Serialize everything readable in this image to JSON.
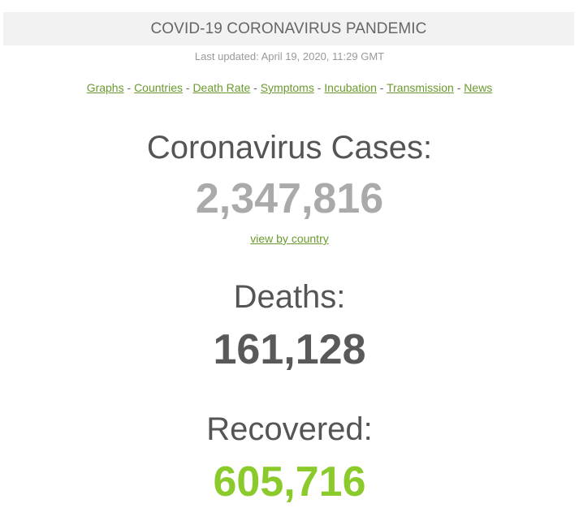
{
  "header": {
    "title": "COVID-19 CORONAVIRUS PANDEMIC",
    "last_updated": "Last updated: April 19, 2020, 11:29 GMT"
  },
  "nav": {
    "separator": " - ",
    "links": [
      {
        "label": "Graphs"
      },
      {
        "label": "Countries"
      },
      {
        "label": "Death Rate"
      },
      {
        "label": "Symptoms"
      },
      {
        "label": "Incubation"
      },
      {
        "label": "Transmission"
      },
      {
        "label": "News"
      }
    ]
  },
  "stats": {
    "cases": {
      "label": "Coronavirus Cases:",
      "value": "2,347,816",
      "color": "#aaaaaa"
    },
    "view_by_country": "view by country",
    "deaths": {
      "label": "Deaths:",
      "value": "161,128",
      "color": "#595959"
    },
    "recovered": {
      "label": "Recovered:",
      "value": "605,716",
      "color": "#8aca2b"
    }
  },
  "colors": {
    "link": "#6b9a2e",
    "banner_bg": "#f2f2f2"
  }
}
